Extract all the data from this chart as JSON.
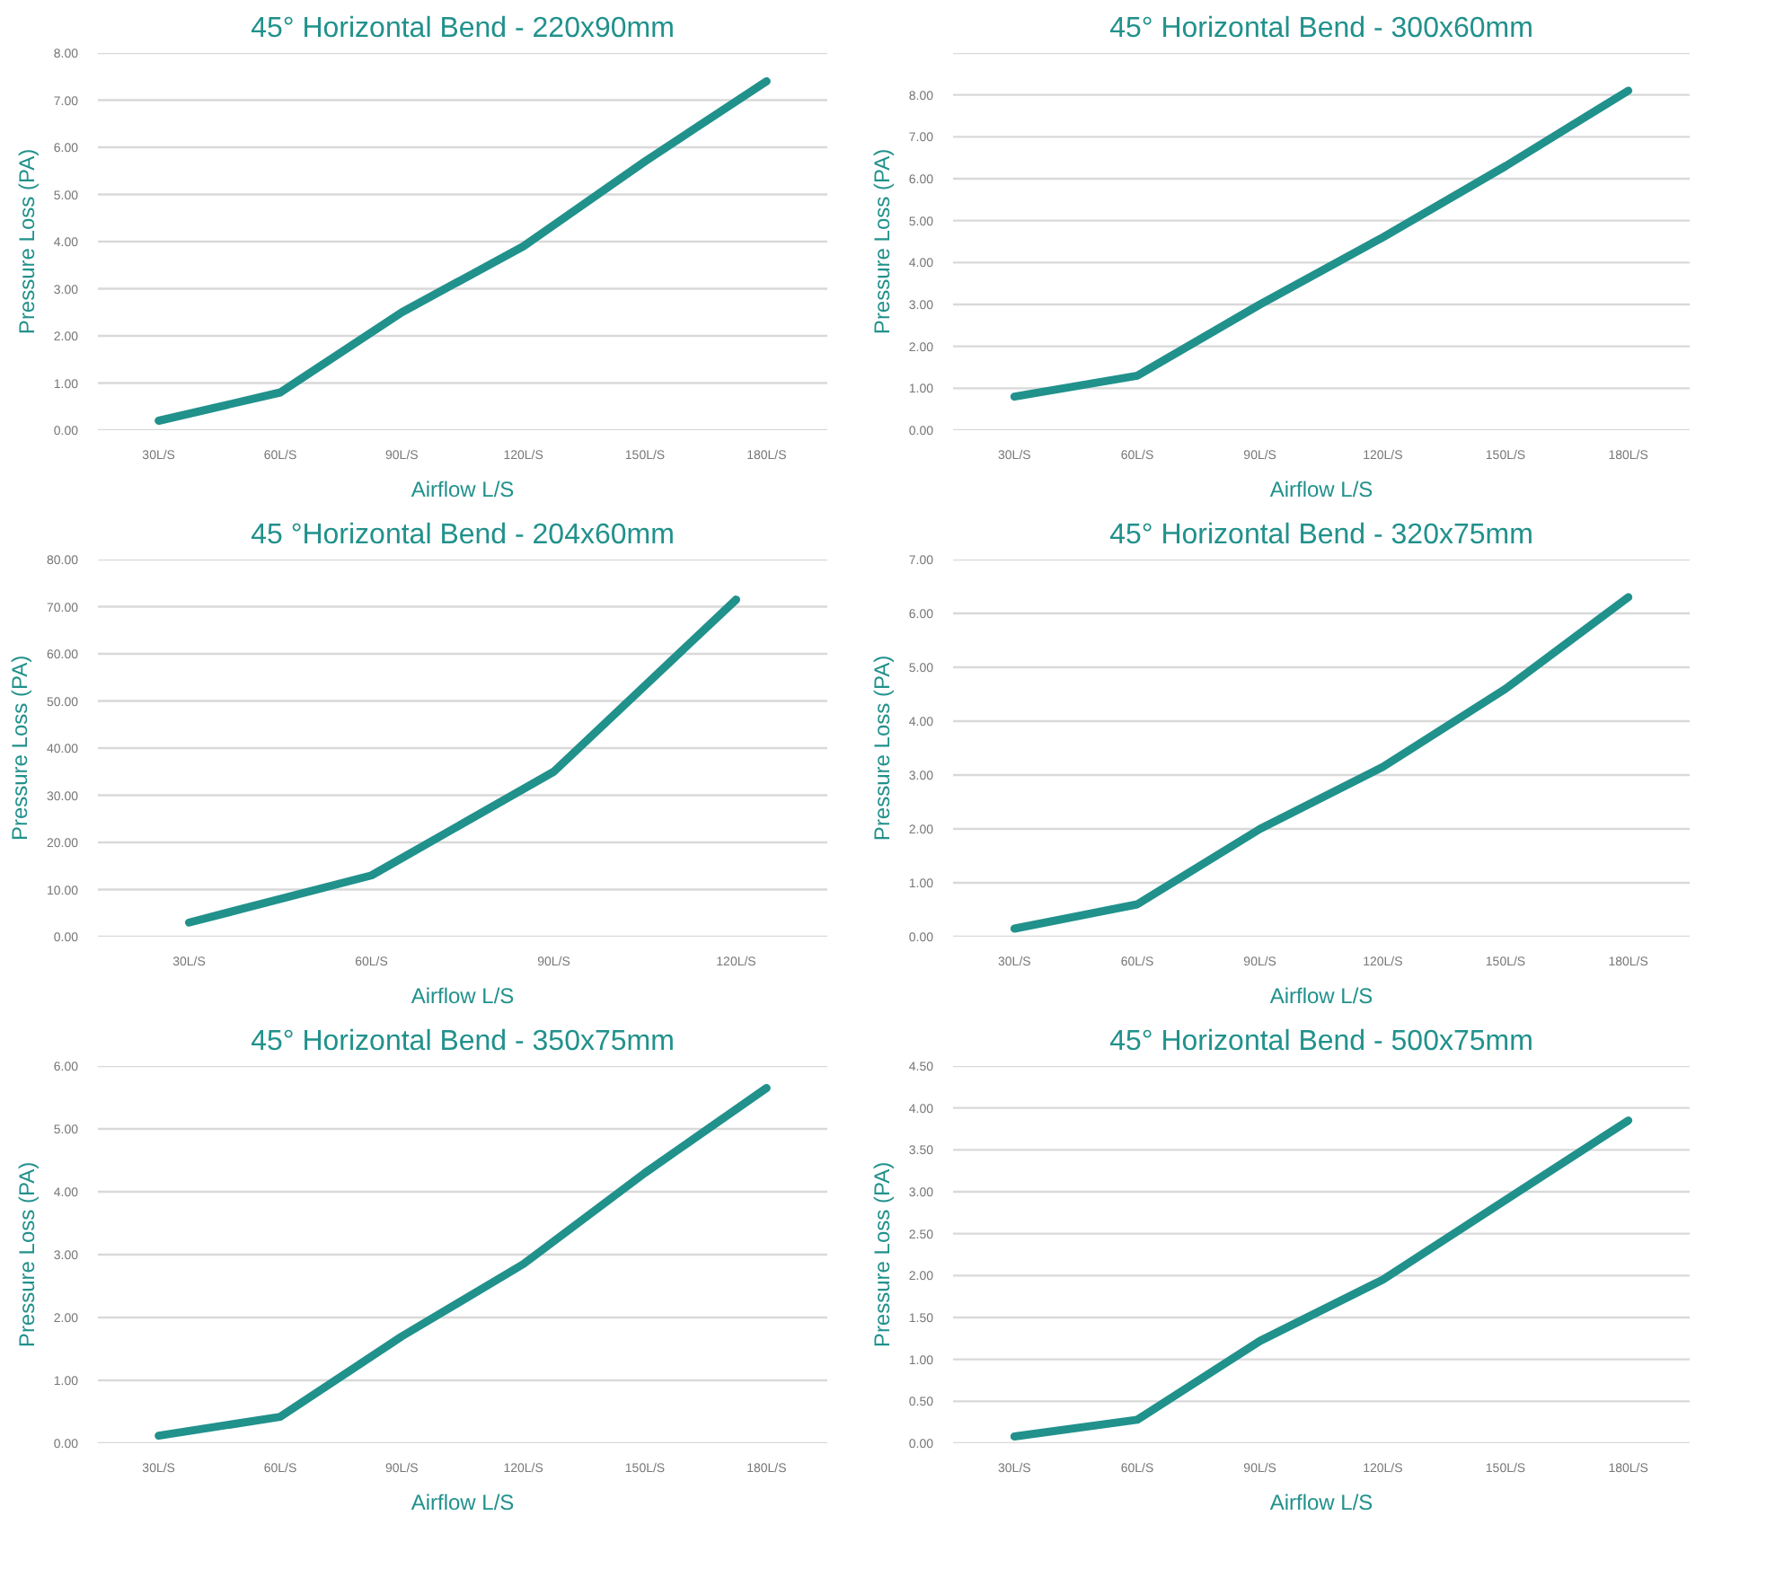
{
  "chart_data": [
    {
      "type": "line",
      "title": "45° Horizontal Bend - 220x90mm",
      "xlabel": "Airflow L/S",
      "ylabel": "Pressure Loss (PA)",
      "categories": [
        "30L/S",
        "60L/S",
        "90L/S",
        "120L/S",
        "150L/S",
        "180L/S"
      ],
      "series": [
        {
          "color": "#21918c",
          "values": [
            0.2,
            0.8,
            2.5,
            3.9,
            5.7,
            7.4
          ]
        }
      ],
      "ylim": [
        0,
        8
      ],
      "yticks": [
        {
          "value": 0,
          "label": "0.00"
        },
        {
          "value": 1,
          "label": "1.00"
        },
        {
          "value": 2,
          "label": "2.00"
        },
        {
          "value": 3,
          "label": "3.00"
        },
        {
          "value": 4,
          "label": "4.00"
        },
        {
          "value": 5,
          "label": "5.00"
        },
        {
          "value": 6,
          "label": "6.00"
        },
        {
          "value": 7,
          "label": "7.00"
        },
        {
          "value": 8,
          "label": "8.00"
        }
      ],
      "grid": "y",
      "marker": "none",
      "line_style": "solid"
    },
    {
      "type": "line",
      "title": "45° Horizontal Bend - 300x60mm",
      "xlabel": "Airflow L/S",
      "ylabel": "Pressure Loss (PA)",
      "categories": [
        "30L/S",
        "60L/S",
        "90L/S",
        "120L/S",
        "150L/S",
        "180L/S"
      ],
      "series": [
        {
          "color": "#21918c",
          "values": [
            0.8,
            1.3,
            3.0,
            4.6,
            6.3,
            8.1
          ]
        }
      ],
      "ylim": [
        0,
        9
      ],
      "yticks": [
        {
          "value": 0,
          "label": "0.00"
        },
        {
          "value": 1,
          "label": "1.00"
        },
        {
          "value": 2,
          "label": "2.00"
        },
        {
          "value": 3,
          "label": "3.00"
        },
        {
          "value": 4,
          "label": "4.00"
        },
        {
          "value": 5,
          "label": "5.00"
        },
        {
          "value": 6,
          "label": "6.00"
        },
        {
          "value": 7,
          "label": "7.00"
        },
        {
          "value": 8,
          "label": "8.00"
        },
        {
          "value": 9,
          "label": null
        }
      ],
      "grid": "y",
      "marker": "none",
      "line_style": "solid"
    },
    {
      "type": "line",
      "title": "45 °Horizontal Bend - 204x60mm",
      "xlabel": "Airflow L/S",
      "ylabel": "Pressure Loss (PA)",
      "categories": [
        "30L/S",
        "60L/S",
        "90L/S",
        "120L/S"
      ],
      "series": [
        {
          "color": "#21918c",
          "values": [
            3,
            13,
            35,
            71.5
          ]
        }
      ],
      "ylim": [
        0,
        80
      ],
      "yticks": [
        {
          "value": 0,
          "label": "0.00"
        },
        {
          "value": 10,
          "label": "10.00"
        },
        {
          "value": 20,
          "label": "20.00"
        },
        {
          "value": 30,
          "label": "30.00"
        },
        {
          "value": 40,
          "label": "40.00"
        },
        {
          "value": 50,
          "label": "50.00"
        },
        {
          "value": 60,
          "label": "60.00"
        },
        {
          "value": 70,
          "label": "70.00"
        },
        {
          "value": 80,
          "label": "80.00"
        }
      ],
      "grid": "y",
      "marker": "none",
      "line_style": "solid"
    },
    {
      "type": "line",
      "title": "45° Horizontal Bend - 320x75mm",
      "xlabel": "Airflow L/S",
      "ylabel": "Pressure Loss (PA)",
      "categories": [
        "30L/S",
        "60L/S",
        "90L/S",
        "120L/S",
        "150L/S",
        "180L/S"
      ],
      "series": [
        {
          "color": "#21918c",
          "values": [
            0.15,
            0.6,
            2.0,
            3.15,
            4.6,
            6.3
          ]
        }
      ],
      "ylim": [
        0,
        7
      ],
      "yticks": [
        {
          "value": 0,
          "label": "0.00"
        },
        {
          "value": 1,
          "label": "1.00"
        },
        {
          "value": 2,
          "label": "2.00"
        },
        {
          "value": 3,
          "label": "3.00"
        },
        {
          "value": 4,
          "label": "4.00"
        },
        {
          "value": 5,
          "label": "5.00"
        },
        {
          "value": 6,
          "label": "6.00"
        },
        {
          "value": 7,
          "label": "7.00"
        }
      ],
      "grid": "y",
      "marker": "none",
      "line_style": "solid"
    },
    {
      "type": "line",
      "title": "45° Horizontal Bend - 350x75mm",
      "xlabel": "Airflow L/S",
      "ylabel": "Pressure Loss (PA)",
      "categories": [
        "30L/S",
        "60L/S",
        "90L/S",
        "120L/S",
        "150L/S",
        "180L/S"
      ],
      "series": [
        {
          "color": "#21918c",
          "values": [
            0.12,
            0.42,
            1.7,
            2.85,
            4.3,
            5.65
          ]
        }
      ],
      "ylim": [
        0,
        6
      ],
      "yticks": [
        {
          "value": 0,
          "label": "0.00"
        },
        {
          "value": 1,
          "label": "1.00"
        },
        {
          "value": 2,
          "label": "2.00"
        },
        {
          "value": 3,
          "label": "3.00"
        },
        {
          "value": 4,
          "label": "4.00"
        },
        {
          "value": 5,
          "label": "5.00"
        },
        {
          "value": 6,
          "label": "6.00"
        }
      ],
      "grid": "y",
      "marker": "none",
      "line_style": "solid"
    },
    {
      "type": "line",
      "title": "45° Horizontal Bend - 500x75mm",
      "xlabel": "Airflow L/S",
      "ylabel": "Pressure Loss (PA)",
      "categories": [
        "30L/S",
        "60L/S",
        "90L/S",
        "120L/S",
        "150L/S",
        "180L/S"
      ],
      "series": [
        {
          "color": "#21918c",
          "values": [
            0.08,
            0.28,
            1.22,
            1.95,
            2.9,
            3.85
          ]
        }
      ],
      "ylim": [
        0,
        4.5
      ],
      "yticks": [
        {
          "value": 0,
          "label": "0.00"
        },
        {
          "value": 0.5,
          "label": "0.50"
        },
        {
          "value": 1,
          "label": "1.00"
        },
        {
          "value": 1.5,
          "label": "1.50"
        },
        {
          "value": 2,
          "label": "2.00"
        },
        {
          "value": 2.5,
          "label": "2.50"
        },
        {
          "value": 3,
          "label": "3.00"
        },
        {
          "value": 3.5,
          "label": "3.50"
        },
        {
          "value": 4,
          "label": "4.00"
        },
        {
          "value": 4.5,
          "label": "4.50"
        }
      ],
      "grid": "y",
      "marker": "none",
      "line_style": "solid"
    }
  ]
}
